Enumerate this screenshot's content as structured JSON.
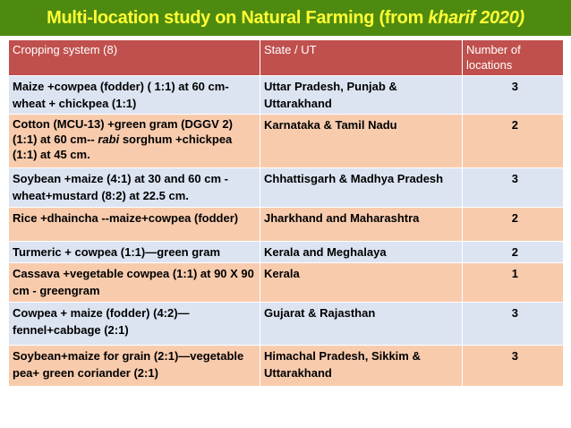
{
  "title": {
    "main": "Multi-location study on Natural Farming (from ",
    "italic": "kharif 2020)"
  },
  "table": {
    "headers": [
      "Cropping system (8)",
      "State / UT",
      "Number of locations"
    ],
    "rows": [
      {
        "system": "Maize +cowpea  (fodder) ( 1:1) at 60 cm-wheat + chickpea (1:1)",
        "state": "Uttar Pradesh, Punjab & Uttarakhand",
        "locations": "3"
      },
      {
        "system_pre": "Cotton  (MCU-13) +green gram (DGGV 2) (1:1) at 60 cm-- ",
        "system_italic": "rabi",
        "system_post": " sorghum +chickpea (1:1) at 45 cm.",
        "state": "Karnataka & Tamil Nadu",
        "locations": "2"
      },
      {
        "system": "Soybean +maize (4:1) at 30 and 60 cm - wheat+mustard (8:2) at 22.5 cm.",
        "state": "Chhattisgarh & Madhya Pradesh",
        "locations": "3"
      },
      {
        "system": "Rice +dhaincha --maize+cowpea (fodder)",
        "state": "Jharkhand and Maharashtra",
        "locations": "2"
      },
      {
        "system": "Turmeric + cowpea (1:1)—green gram",
        "state": "Kerala and Meghalaya",
        "locations": "2"
      },
      {
        "system": "Cassava +vegetable cowpea (1:1) at 90 X 90 cm - greengram",
        "state": "Kerala",
        "locations": "1"
      },
      {
        "system": "Cowpea + maize (fodder) (4:2)—fennel+cabbage (2:1)",
        "state": "Gujarat & Rajasthan",
        "locations": "3"
      },
      {
        "system": "Soybean+maize for grain (2:1)—vegetable pea+ green coriander (2:1)",
        "state": "Himachal Pradesh, Sikkim & Uttarakhand",
        "locations": "3"
      }
    ]
  },
  "colors": {
    "title_bg": "#4f8a10",
    "title_text": "#ffff33",
    "header_bg": "#c0504d",
    "row_blue": "#dce4f2",
    "row_peach": "#f8cbad"
  }
}
